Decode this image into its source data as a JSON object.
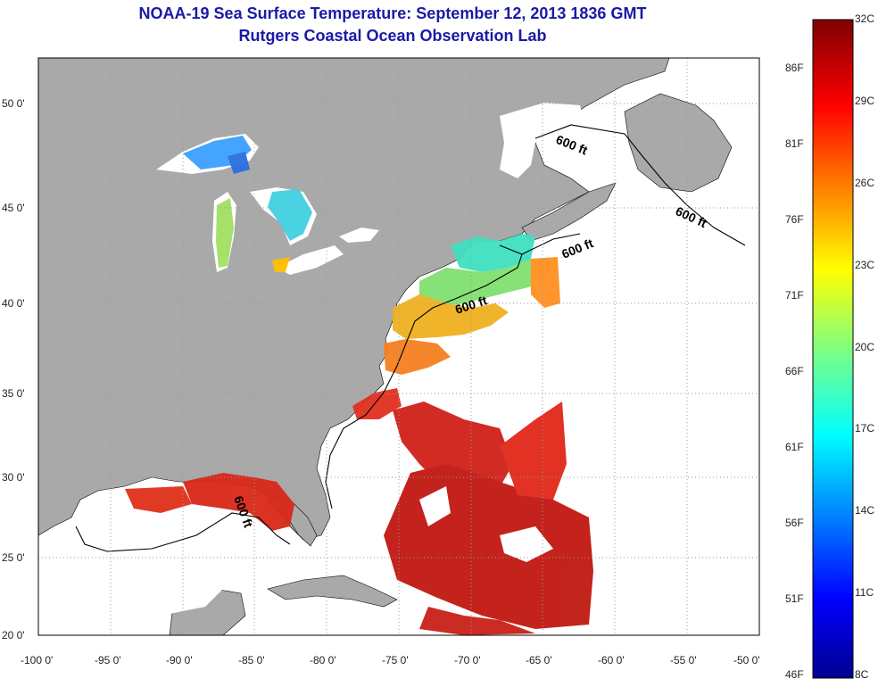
{
  "title": "NOAA-19 Sea Surface Temperature:  September 12, 2013 1836 GMT",
  "subtitle": "Rutgers Coastal Ocean Observation Lab",
  "x_ticks": [
    "-100 0'",
    "-95 0'",
    "-90 0'",
    "-85 0'",
    "-80 0'",
    "-75 0'",
    "-70 0'",
    "-65 0'",
    "-60 0'",
    "-55 0'",
    "-50 0'"
  ],
  "y_ticks": [
    "50 0'",
    "45 0'",
    "40 0'",
    "35 0'",
    "30 0'",
    "25 0'",
    "20 0'"
  ],
  "colorbar": {
    "celsius_labels": [
      "32C",
      "29C",
      "26C",
      "23C",
      "20C",
      "17C",
      "14C",
      "11C",
      "8C"
    ],
    "fahrenheit_labels": [
      "86F",
      "81F",
      "76F",
      "71F",
      "66F",
      "61F",
      "56F",
      "51F",
      "46F"
    ],
    "range_c": [
      8,
      32
    ],
    "colormap": "jet"
  },
  "depth_labels": [
    "600 ft",
    "600 ft",
    "600 ft",
    "600 ft",
    "600 ft"
  ],
  "colors": {
    "land": "#a9a9a9",
    "water": "#ffffff",
    "title": "#1a1aa6",
    "grid": "#b0b0b0"
  }
}
